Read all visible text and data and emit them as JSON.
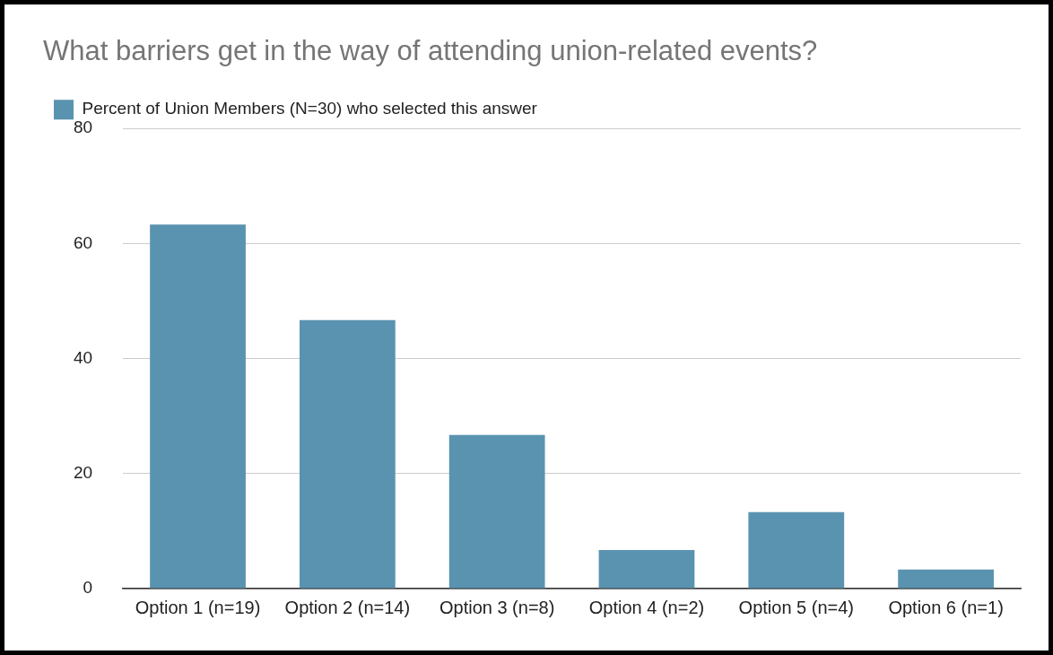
{
  "chart_data": {
    "type": "bar",
    "title": "What barriers get in the way of attending union-related events?",
    "categories": [
      "Option 1 (n=19)",
      "Option 2 (n=14)",
      "Option 3 (n=8)",
      "Option 4 (n=2)",
      "Option 5 (n=4)",
      "Option 6 (n=1)"
    ],
    "series": [
      {
        "name": "Percent of Union Members (N=30) who selected this answer",
        "color": "#5a93b0",
        "values": [
          63.3,
          46.7,
          26.7,
          6.7,
          13.3,
          3.3
        ]
      }
    ],
    "ylim": [
      0,
      80
    ],
    "yticks": [
      0,
      20,
      40,
      60,
      80
    ],
    "grid": "y",
    "legend": "top left"
  }
}
